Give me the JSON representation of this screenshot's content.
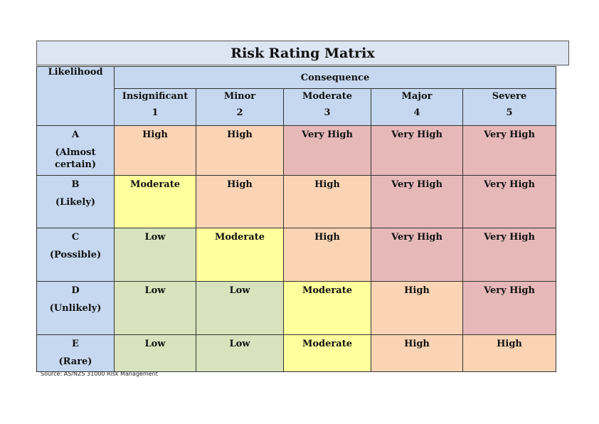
{
  "title": "Risk Rating Matrix",
  "likelihood_header": "Likelihood",
  "consequence_header": "Consequence",
  "consequence_columns": [
    {
      "label": "Insignificant",
      "number": "1"
    },
    {
      "label": "Minor",
      "number": "2"
    },
    {
      "label": "Moderate",
      "number": "3"
    },
    {
      "label": "Major",
      "number": "4"
    },
    {
      "label": "Severe",
      "number": "5"
    }
  ],
  "rows": [
    {
      "letter": "A",
      "desc": "(Almost certain)",
      "ratings": [
        "High",
        "High",
        "Very High",
        "Very High",
        "Very High"
      ]
    },
    {
      "letter": "B",
      "desc": "(Likely)",
      "ratings": [
        "Moderate",
        "High",
        "High",
        "Very High",
        "Very High"
      ]
    },
    {
      "letter": "C",
      "desc": "(Possible)",
      "ratings": [
        "Low",
        "Moderate",
        "High",
        "Very High",
        "Very High"
      ]
    },
    {
      "letter": "D",
      "desc": "(Unlikely)",
      "ratings": [
        "Low",
        "Low",
        "Moderate",
        "High",
        "Very High"
      ]
    },
    {
      "letter": "E",
      "desc": "(Rare)",
      "ratings": [
        "Low",
        "Low",
        "Moderate",
        "High",
        "High"
      ]
    }
  ],
  "colors": {
    "header": "#c5d8ef",
    "title_bg": "#dce5f1",
    "Low": "#d8e3bd",
    "Moderate": "#ffff9d",
    "High": "#fad4b4",
    "Very High": "#e6b9b8"
  },
  "source": "Source: AS/NZS 31000 Risk Management"
}
